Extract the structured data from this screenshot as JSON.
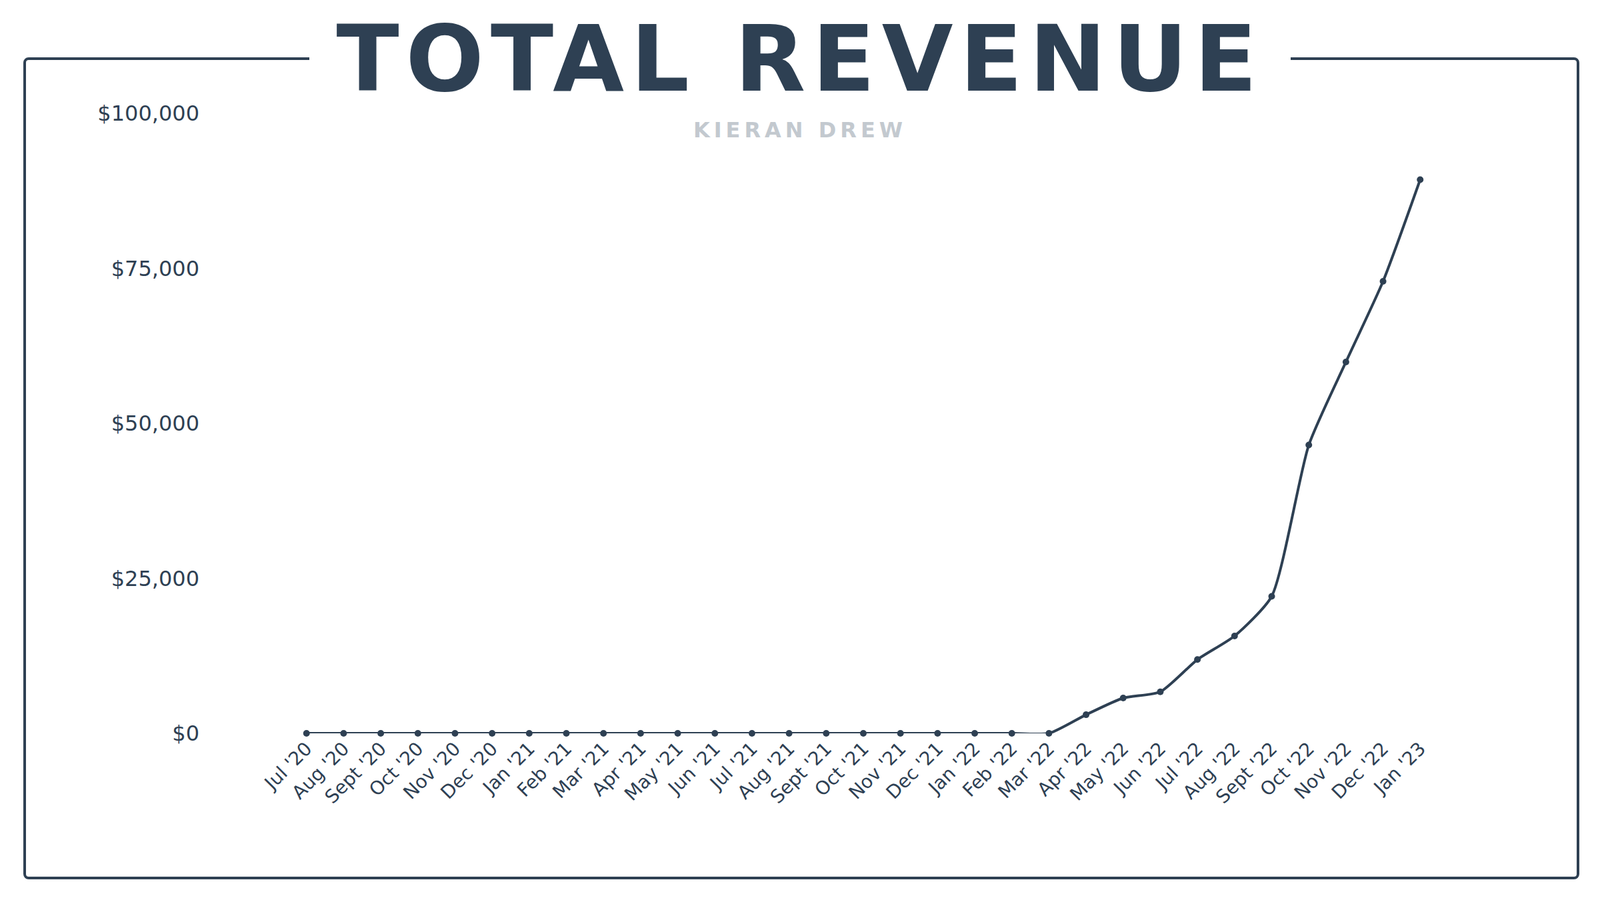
{
  "chart_data": {
    "type": "line",
    "title": "TOTAL REVENUE",
    "subtitle": "KIERAN DREW",
    "categories": [
      "Jul '20",
      "Aug '20",
      "Sept '20",
      "Oct '20",
      "Nov '20",
      "Dec '20",
      "Jan '21",
      "Feb '21",
      "Mar '21",
      "Apr '21",
      "May '21",
      "Jun '21",
      "Jul '21",
      "Aug '21",
      "Sept '21",
      "Oct '21",
      "Nov '21",
      "Dec '21",
      "Jan '22",
      "Feb '22",
      "Mar '22",
      "Apr '22",
      "May '22",
      "Jun '22",
      "Jul '22",
      "Aug '22",
      "Sept '22",
      "Oct '22",
      "Nov '22",
      "Dec '22",
      "Jan '23"
    ],
    "values": [
      0,
      0,
      0,
      0,
      0,
      0,
      0,
      0,
      0,
      0,
      0,
      0,
      0,
      0,
      0,
      0,
      0,
      0,
      0,
      0,
      0,
      3000,
      5700,
      6700,
      11900,
      15700,
      22100,
      46500,
      59900,
      72900,
      89300
    ],
    "color": "#2e4053",
    "marker": "circle",
    "line_style": "solid",
    "ylim": [
      0,
      100000
    ],
    "yticks": [
      {
        "value": 0,
        "label": "$0"
      },
      {
        "value": 25000,
        "label": "$25,000"
      },
      {
        "value": 50000,
        "label": "$50,000"
      },
      {
        "value": 75000,
        "label": "$75,000"
      },
      {
        "value": 100000,
        "label": "$100,000"
      }
    ],
    "grid": false
  }
}
